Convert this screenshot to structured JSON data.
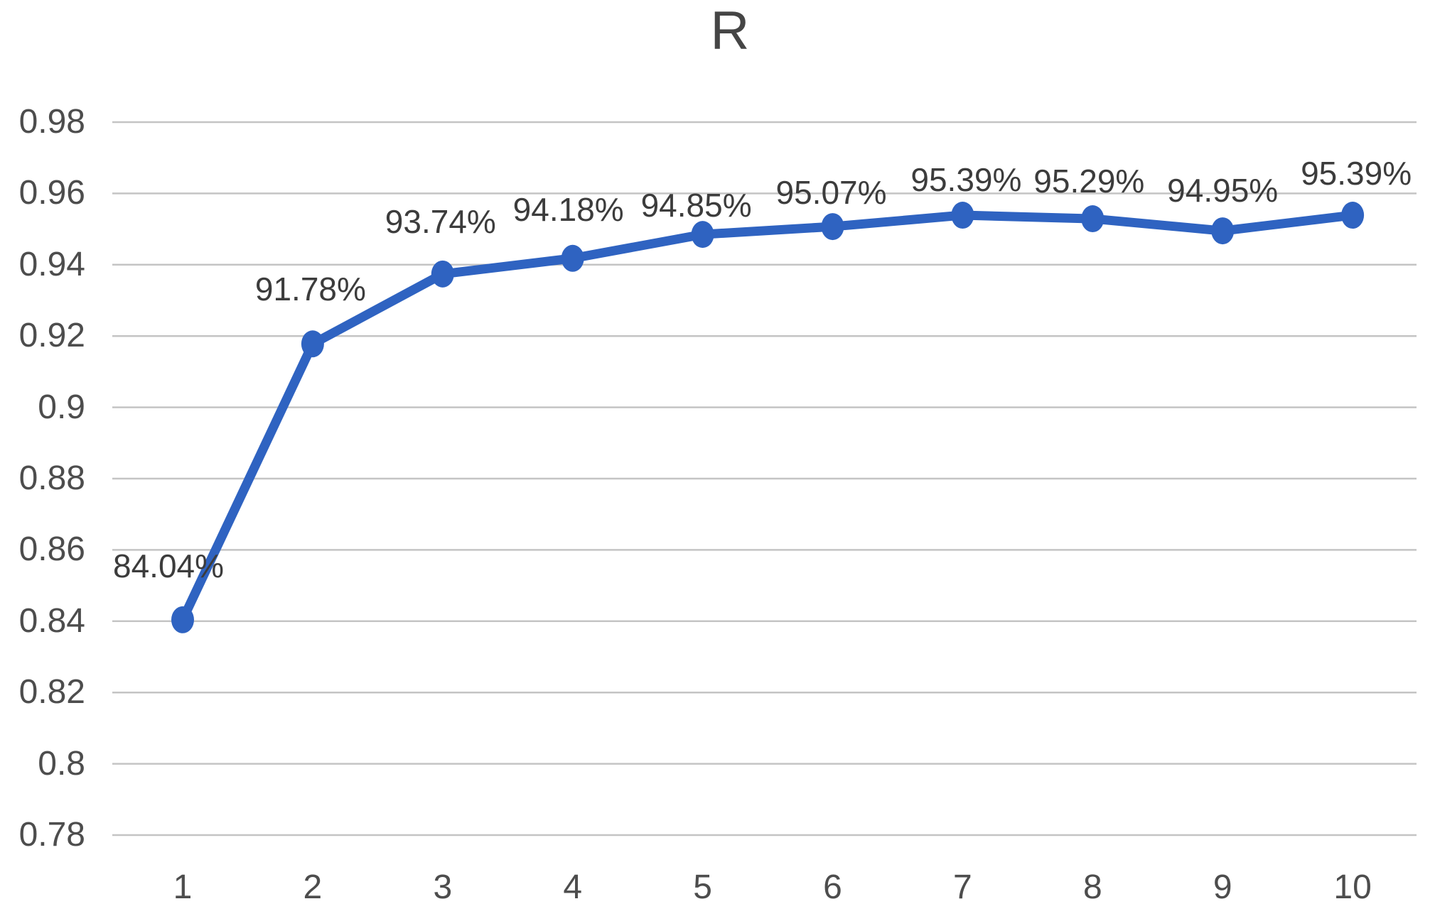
{
  "chart_data": {
    "type": "line",
    "title": "R",
    "categories": [
      "1",
      "2",
      "3",
      "4",
      "5",
      "6",
      "7",
      "8",
      "9",
      "10"
    ],
    "series": [
      {
        "name": "R",
        "values": [
          0.8404,
          0.9178,
          0.9374,
          0.9418,
          0.9485,
          0.9507,
          0.9539,
          0.9529,
          0.9495,
          0.9539
        ],
        "point_labels": [
          "84.04%",
          "91.78%",
          "93.74%",
          "94.18%",
          "94.85%",
          "95.07%",
          "95.39%",
          "95.29%",
          "94.95%",
          "95.39%"
        ]
      }
    ],
    "xlabel": "",
    "ylabel": "",
    "ylim": [
      0.78,
      0.98
    ],
    "ytick_labels": [
      "0.98",
      "0.96",
      "0.94",
      "0.92",
      "0.9",
      "0.88",
      "0.86",
      "0.84",
      "0.82",
      "0.8",
      "0.78"
    ],
    "grid": "horizontal",
    "legend": "none",
    "marker": "circle",
    "colors": {
      "series": "#2f63c1",
      "gridline": "#c4c4c4",
      "tick_text": "#4d4d4d",
      "data_label_text": "#3c3c3c",
      "title_text": "#454545",
      "background": "#ffffff"
    }
  }
}
